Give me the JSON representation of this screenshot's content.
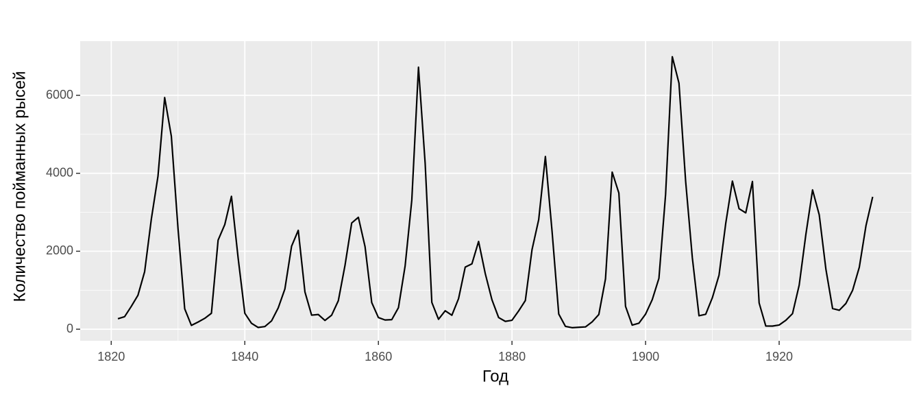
{
  "chart_data": {
    "type": "line",
    "x_label": "Год",
    "y_label": "Количество пойманных рысей",
    "x": [
      1821,
      1822,
      1823,
      1824,
      1825,
      1826,
      1827,
      1828,
      1829,
      1830,
      1831,
      1832,
      1833,
      1834,
      1835,
      1836,
      1837,
      1838,
      1839,
      1840,
      1841,
      1842,
      1843,
      1844,
      1845,
      1846,
      1847,
      1848,
      1849,
      1850,
      1851,
      1852,
      1853,
      1854,
      1855,
      1856,
      1857,
      1858,
      1859,
      1860,
      1861,
      1862,
      1863,
      1864,
      1865,
      1866,
      1867,
      1868,
      1869,
      1870,
      1871,
      1872,
      1873,
      1874,
      1875,
      1876,
      1877,
      1878,
      1879,
      1880,
      1881,
      1882,
      1883,
      1884,
      1885,
      1886,
      1887,
      1888,
      1889,
      1890,
      1891,
      1892,
      1893,
      1894,
      1895,
      1896,
      1897,
      1898,
      1899,
      1900,
      1901,
      1902,
      1903,
      1904,
      1905,
      1906,
      1907,
      1908,
      1909,
      1910,
      1911,
      1912,
      1913,
      1914,
      1915,
      1916,
      1917,
      1918,
      1919,
      1920,
      1921,
      1922,
      1923,
      1924,
      1925,
      1926,
      1927,
      1928,
      1929,
      1930,
      1931,
      1932,
      1933,
      1934
    ],
    "series": [
      {
        "color": "#000000",
        "values": [
          269,
          321,
          585,
          871,
          1475,
          2821,
          3928,
          5943,
          4950,
          2577,
          523,
          98,
          184,
          279,
          409,
          2285,
          2685,
          3409,
          1824,
          409,
          151,
          45,
          68,
          213,
          546,
          1033,
          2129,
          2536,
          957,
          361,
          377,
          225,
          360,
          731,
          1638,
          2725,
          2871,
          2119,
          684,
          299,
          236,
          245,
          552,
          1623,
          3311,
          6721,
          4254,
          687,
          255,
          473,
          358,
          784,
          1594,
          1676,
          2251,
          1426,
          756,
          299,
          201,
          229,
          469,
          736,
          2042,
          2811,
          4431,
          2511,
          389,
          73,
          39,
          49,
          59,
          188,
          377,
          1292,
          4031,
          3495,
          587,
          105,
          153,
          387,
          758,
          1307,
          3465,
          6991,
          6313,
          3794,
          1836,
          345,
          382,
          808,
          1388,
          2713,
          3800,
          3091,
          2985,
          3790,
          674,
          81,
          80,
          108,
          229,
          399,
          1132,
          2432,
          3574,
          2935,
          1537,
          529,
          485,
          662,
          1000,
          1590,
          2657,
          3396
        ]
      }
    ],
    "xlim": [
      1815.35,
      1939.8
    ],
    "ylim": [
      -298,
      7390
    ],
    "xticks": [
      1820,
      1840,
      1860,
      1880,
      1900,
      1920
    ],
    "yticks": [
      0,
      2000,
      4000,
      6000
    ],
    "grid": true,
    "minor_grid": true,
    "panel_color": "#ebebeb"
  }
}
